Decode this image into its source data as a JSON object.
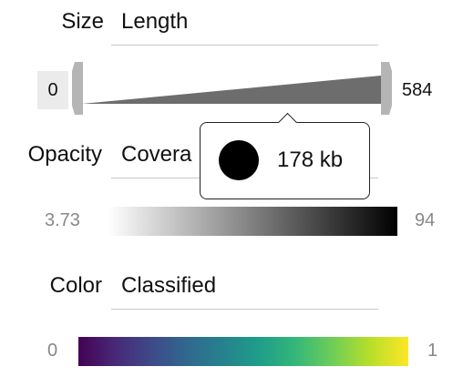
{
  "size": {
    "label": "Size",
    "field": "Length",
    "min": "0",
    "max": "584"
  },
  "opacity": {
    "label": "Opacity",
    "field": "Covera",
    "min": "3.73",
    "max": "94"
  },
  "color": {
    "label": "Color",
    "field": "Classified",
    "min": "0",
    "max": "1",
    "palette": [
      "#440154",
      "#3e4989",
      "#26828e",
      "#35b779",
      "#fde725"
    ]
  },
  "tooltip": {
    "value": "178 kb"
  }
}
